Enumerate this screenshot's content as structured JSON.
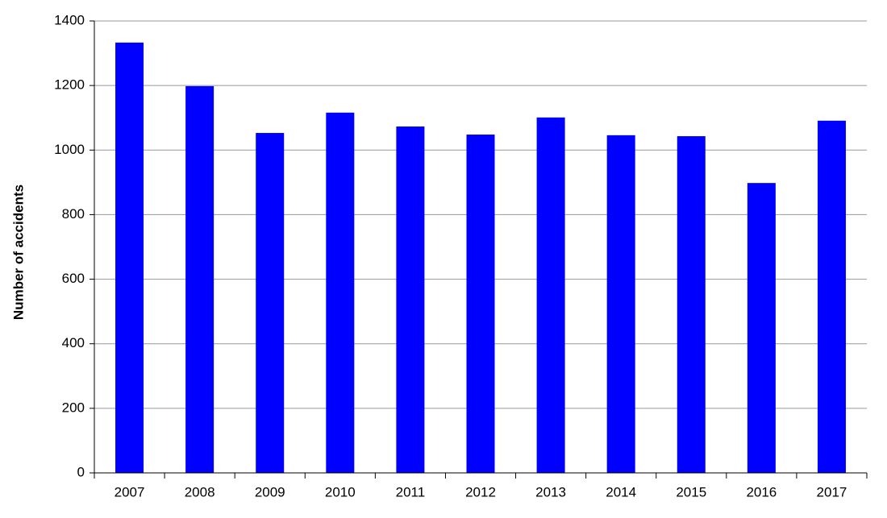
{
  "chart_data": {
    "type": "bar",
    "y_label": "Number of accidents",
    "categories": [
      "2007",
      "2008",
      "2009",
      "2010",
      "2011",
      "2012",
      "2013",
      "2014",
      "2015",
      "2016",
      "2017"
    ],
    "values": [
      1333,
      1198,
      1053,
      1116,
      1073,
      1048,
      1101,
      1046,
      1043,
      898,
      1091
    ],
    "color": "#0000ff",
    "ylim": [
      0,
      1400
    ],
    "yticks": [
      0,
      200,
      400,
      600,
      800,
      1000,
      1200,
      1400
    ],
    "grid": true
  }
}
